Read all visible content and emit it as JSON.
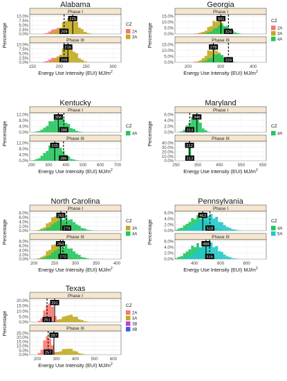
{
  "figure": {
    "legend_title": "CZ",
    "phase_labels": [
      "Phase I",
      "Phase III"
    ],
    "ylabel": "Percentage",
    "xlabel": "Energy Use Intensity (EUI) MJ/m",
    "xlabel_superscript": "2",
    "colors": {
      "2A": "#f8766d",
      "3A": "#bfaa1e",
      "3B": "#c23fd4",
      "4A": "#21c55d",
      "4B": "#3d5af5",
      "5A": "#21c8c8"
    }
  },
  "chart_data": [
    {
      "type": "histogram",
      "title": "Alabama",
      "xticks": [
        150,
        200,
        250,
        300
      ],
      "xlim": [
        145,
        315
      ],
      "panels": [
        {
          "phase": "Phase I",
          "yticks": [
            "0.0%",
            "2.5%",
            "5.0%",
            "7.5%",
            "10.0%"
          ],
          "ylim": [
            0,
            11
          ],
          "series": [
            {
              "cz": "2A",
              "center": 195,
              "spread": 10,
              "peak": 3.5
            },
            {
              "cz": "3A",
              "center": 220,
              "spread": 14,
              "peak": 10.3
            }
          ],
          "median_line": 225,
          "median_label": "225",
          "mean_line": 209,
          "mean_label": "209"
        },
        {
          "phase": "Phase III",
          "yticks": [
            "0.0%",
            "2.5%",
            "5.0%",
            "7.5%",
            "10.0%"
          ],
          "ylim": [
            0,
            11
          ],
          "series": [
            {
              "cz": "2A",
              "center": 193,
              "spread": 10,
              "peak": 3.2
            },
            {
              "cz": "3A",
              "center": 217,
              "spread": 13,
              "peak": 10.5
            }
          ],
          "median_line": 216,
          "median_label": "216",
          "mean_line": 209,
          "mean_label": "209"
        }
      ],
      "legend": [
        "2A",
        "3A"
      ]
    },
    {
      "type": "histogram",
      "title": "Georgia",
      "xticks": [
        200,
        300,
        400
      ],
      "xlim": [
        160,
        440
      ],
      "panels": [
        {
          "phase": "Phase I",
          "yticks": [
            "0.0%",
            "5.0%",
            "10.0%",
            "15.0%"
          ],
          "ylim": [
            0,
            17
          ],
          "series": [
            {
              "cz": "2A",
              "center": 255,
              "spread": 18,
              "peak": 2.0
            },
            {
              "cz": "3A",
              "center": 290,
              "spread": 22,
              "peak": 13.0
            },
            {
              "cz": "4A",
              "center": 305,
              "spread": 22,
              "peak": 9.0
            }
          ],
          "median_line": 301,
          "median_label": "301",
          "mean_line": 324,
          "mean_label": "324"
        },
        {
          "phase": "Phase III",
          "yticks": [
            "0.0%",
            "5.0%",
            "10.0%",
            "15.0%"
          ],
          "ylim": [
            0,
            17
          ],
          "series": [
            {
              "cz": "2A",
              "center": 250,
              "spread": 18,
              "peak": 2.0
            },
            {
              "cz": "3A",
              "center": 278,
              "spread": 20,
              "peak": 14.0
            },
            {
              "cz": "4A",
              "center": 292,
              "spread": 21,
              "peak": 8.5
            }
          ],
          "median_line": 278,
          "median_label": "278",
          "mean_line": 324,
          "mean_label": "324"
        }
      ],
      "legend": [
        "2A",
        "3A",
        "4A"
      ]
    },
    {
      "type": "histogram",
      "title": "Kentucky",
      "xticks": [
        200,
        300,
        400,
        500,
        600,
        700
      ],
      "xlim": [
        190,
        720
      ],
      "panels": [
        {
          "phase": "Phase I",
          "yticks": [
            "0.0%",
            "4.0%",
            "8.0%",
            "12.0%"
          ],
          "ylim": [
            0,
            12.5
          ],
          "series": [
            {
              "cz": "4A",
              "center": 355,
              "spread": 50,
              "peak": 11.5
            }
          ],
          "median_line": 356,
          "median_label": "356",
          "mean_line": 388,
          "mean_label": "388"
        },
        {
          "phase": "Phase III",
          "yticks": [
            "0.0%",
            "4.0%",
            "8.0%",
            "12.0%"
          ],
          "ylim": [
            0,
            12.5
          ],
          "series": [
            {
              "cz": "4A",
              "center": 335,
              "spread": 48,
              "peak": 11.8
            }
          ],
          "median_line": 335,
          "median_label": "335",
          "mean_line": 386,
          "mean_label": "386"
        }
      ],
      "legend": [
        "4A"
      ]
    },
    {
      "type": "histogram",
      "title": "Maryland",
      "xticks": [
        250,
        350,
        450,
        550,
        650
      ],
      "xlim": [
        245,
        665
      ],
      "panels": [
        {
          "phase": "Phase I",
          "yticks": [
            "0.0%",
            "2.0%",
            "4.0%",
            "6.0%"
          ],
          "ylim": [
            0,
            6.5
          ],
          "series": [
            {
              "cz": "4A",
              "center": 335,
              "spread": 25,
              "peak": 6.0
            }
          ],
          "median_line": 346,
          "median_label": "346",
          "mean_line": 313,
          "mean_label": "313"
        },
        {
          "phase": "Phase III",
          "yticks": [
            "0.0%",
            "10.0%",
            "20.0%",
            "30.0%",
            "40.0%"
          ],
          "ylim": [
            0,
            45
          ],
          "series": [
            {
              "cz": "4A",
              "center": 313,
              "spread": 7,
              "peak": 40.0
            }
          ],
          "median_line": 312,
          "median_label": "312",
          "mean_line": 313,
          "mean_label": "313"
        }
      ],
      "legend": [
        "4A"
      ]
    },
    {
      "type": "histogram",
      "title": "North Carolina",
      "xticks": [
        200,
        250,
        300,
        350,
        400
      ],
      "xlim": [
        190,
        410
      ],
      "panels": [
        {
          "phase": "Phase I",
          "yticks": [
            "0.0%",
            "2.0%",
            "4.0%",
            "6.0%",
            "8.0%"
          ],
          "ylim": [
            0,
            8.5
          ],
          "series": [
            {
              "cz": "3A",
              "center": 255,
              "spread": 18,
              "peak": 7.2
            },
            {
              "cz": "4A",
              "center": 275,
              "spread": 24,
              "peak": 6.5
            }
          ],
          "median_line": 265,
          "median_label": "265",
          "mean_line": 279,
          "mean_label": "279"
        },
        {
          "phase": "Phase III",
          "yticks": [
            "0.0%",
            "2.0%",
            "4.0%",
            "6.0%",
            "8.0%"
          ],
          "ylim": [
            0,
            8.5
          ],
          "series": [
            {
              "cz": "3A",
              "center": 253,
              "spread": 17,
              "peak": 7.4
            },
            {
              "cz": "4A",
              "center": 273,
              "spread": 23,
              "peak": 6.6
            }
          ],
          "median_line": 264,
          "median_label": "264",
          "mean_line": 270,
          "mean_label": "270"
        }
      ],
      "legend": [
        "3A",
        "4A"
      ]
    },
    {
      "type": "histogram",
      "title": "Pennsylvania",
      "xticks": [
        400,
        600,
        800
      ],
      "xlim": [
        250,
        950
      ],
      "panels": [
        {
          "phase": "Phase I",
          "yticks": [
            "0.0%",
            "2.0%",
            "4.0%",
            "6.0%"
          ],
          "ylim": [
            0,
            6.8
          ],
          "series": [
            {
              "cz": "4A",
              "center": 430,
              "spread": 75,
              "peak": 5.5
            },
            {
              "cz": "5A",
              "center": 510,
              "spread": 85,
              "peak": 6.2
            }
          ],
          "median_line": 463,
          "median_label": "463",
          "mean_line": 518,
          "mean_label": "518"
        },
        {
          "phase": "Phase III",
          "yticks": [
            "0.0%",
            "2.0%",
            "4.0%",
            "6.0%"
          ],
          "ylim": [
            0,
            6.8
          ],
          "series": [
            {
              "cz": "4A",
              "center": 420,
              "spread": 70,
              "peak": 5.6
            },
            {
              "cz": "5A",
              "center": 505,
              "spread": 80,
              "peak": 6.3
            }
          ],
          "median_line": 488,
          "median_label": "488",
          "mean_line": 516,
          "mean_label": "516"
        }
      ],
      "legend": [
        "4A",
        "5A"
      ]
    },
    {
      "type": "histogram",
      "title": "Texas",
      "xticks": [
        200,
        300,
        400,
        500,
        600
      ],
      "xlim": [
        160,
        640
      ],
      "panels": [
        {
          "phase": "Phase I",
          "yticks": [
            "0.0%",
            "5.0%",
            "10.0%",
            "15.0%",
            "20.0%"
          ],
          "ylim": [
            0,
            22
          ],
          "series": [
            {
              "cz": "2A",
              "center": 262,
              "spread": 22,
              "peak": 21.0
            },
            {
              "cz": "3A",
              "center": 370,
              "spread": 40,
              "peak": 7.5
            },
            {
              "cz": "3B",
              "center": 270,
              "spread": 12,
              "peak": 1.5
            },
            {
              "cz": "4B",
              "center": 275,
              "spread": 10,
              "peak": 0.8
            }
          ],
          "median_line": 291,
          "median_label": "291",
          "mean_line": 251,
          "mean_label": "251"
        },
        {
          "phase": "Phase III",
          "yticks": [
            "0.0%",
            "5.0%",
            "10.0%",
            "15.0%",
            "20.0%",
            "25.0%"
          ],
          "ylim": [
            0,
            27
          ],
          "series": [
            {
              "cz": "2A",
              "center": 255,
              "spread": 20,
              "peak": 25.0
            },
            {
              "cz": "3A",
              "center": 360,
              "spread": 38,
              "peak": 8.0
            },
            {
              "cz": "3B",
              "center": 265,
              "spread": 12,
              "peak": 1.2
            },
            {
              "cz": "4B",
              "center": 270,
              "spread": 10,
              "peak": 0.6
            }
          ],
          "median_line": 287,
          "median_label": "287",
          "mean_line": 257,
          "mean_label": "257"
        }
      ],
      "legend": [
        "2A",
        "3A",
        "3B",
        "4B"
      ]
    }
  ]
}
